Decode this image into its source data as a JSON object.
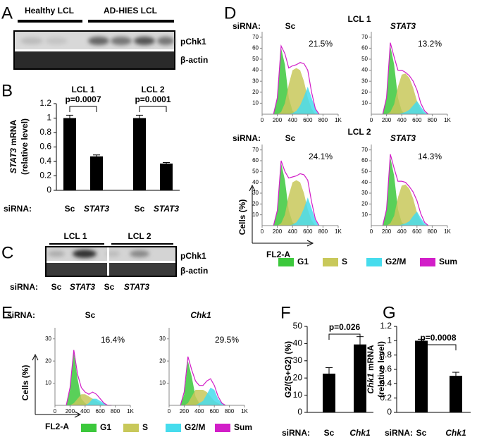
{
  "panel_a": {
    "letter": "A",
    "lanes": [
      "Healthy LCL",
      "AD-HIES LCL"
    ],
    "bands": [
      "pChk1",
      "β-actin"
    ]
  },
  "panel_b": {
    "letter": "B",
    "type": "bar",
    "color": "#000000",
    "ylabel_gene": "STAT3",
    "ylabel": "mRNA",
    "ylabel_line2": "(relative level)",
    "groups": [
      {
        "label": "LCL 1",
        "p": "p=0.0007"
      },
      {
        "label": "LCL 2",
        "p": "p=0.0001"
      }
    ],
    "siRNA_label": "siRNA:",
    "categories": [
      "Sc",
      "STAT3",
      "Sc",
      "STAT3"
    ],
    "values": [
      1.0,
      0.47,
      1.0,
      0.37
    ],
    "errors": [
      0.04,
      0.02,
      0.04,
      0.015
    ],
    "ylim": [
      0,
      1.2
    ],
    "yticks": [
      0,
      0.2,
      0.4,
      0.6,
      0.8,
      1,
      1.2
    ]
  },
  "panel_c": {
    "letter": "C",
    "groups": [
      "LCL 1",
      "LCL 2"
    ],
    "bands": [
      "pChk1",
      "β-actin"
    ],
    "siRNA_label": "siRNA:",
    "lanes": [
      "Sc",
      "STAT3",
      "Sc",
      "STAT3"
    ]
  },
  "panel_d": {
    "letter": "D",
    "type": "histogram",
    "siRNA_label": "siRNA:",
    "xlim": [
      0,
      1000
    ],
    "xticks": [
      0,
      200,
      400,
      600,
      800,
      {
        "value": 1000,
        "label": "1K"
      }
    ],
    "ylim": [
      0,
      75
    ],
    "yticks": [
      10,
      20,
      30,
      40,
      50,
      60,
      70
    ],
    "ylabel": "Cells (%)",
    "xlabel": "FL2-A",
    "legend": [
      {
        "name": "G1",
        "color": "#3cc83c"
      },
      {
        "name": "S",
        "color": "#c8c85a"
      },
      {
        "name": "G2/M",
        "color": "#46dced"
      },
      {
        "name": "Sum",
        "color": "#d21ec8"
      }
    ],
    "x": [
      150,
      200,
      250,
      300,
      350,
      400,
      450,
      500,
      550,
      600,
      650,
      700,
      750
    ],
    "rows": [
      {
        "label": "LCL 1",
        "panels": [
          {
            "name": "Sc",
            "percent": "21.5%",
            "curves": [
              [
                0,
                14,
                60,
                45,
                15,
                3,
                0,
                0,
                0,
                0,
                0,
                0,
                0
              ],
              [
                0,
                0,
                2,
                10,
                27,
                40,
                42,
                40,
                30,
                15,
                5,
                0,
                0
              ],
              [
                0,
                0,
                0,
                0,
                0,
                1,
                3,
                8,
                16,
                25,
                15,
                5,
                0
              ],
              [
                0,
                15,
                62,
                55,
                42,
                44,
                45,
                47,
                46,
                40,
                20,
                5,
                0
              ]
            ]
          },
          {
            "name": "STAT3",
            "percent": "13.2%",
            "curves": [
              [
                0,
                14,
                62,
                45,
                15,
                3,
                0,
                0,
                0,
                0,
                0,
                0,
                0
              ],
              [
                0,
                0,
                2,
                9,
                25,
                36,
                37,
                33,
                24,
                12,
                4,
                0,
                0
              ],
              [
                0,
                0,
                0,
                0,
                0,
                1,
                2,
                4,
                8,
                12,
                7,
                2,
                0
              ],
              [
                0,
                15,
                65,
                52,
                40,
                40,
                38,
                35,
                30,
                22,
                10,
                3,
                0
              ]
            ]
          }
        ]
      },
      {
        "label": "LCL 2",
        "panels": [
          {
            "name": "Sc",
            "percent": "24.1%",
            "curves": [
              [
                0,
                13,
                58,
                42,
                14,
                3,
                0,
                0,
                0,
                0,
                0,
                0,
                0
              ],
              [
                0,
                0,
                2,
                10,
                28,
                40,
                42,
                40,
                30,
                15,
                5,
                0,
                0
              ],
              [
                0,
                0,
                0,
                0,
                0,
                1,
                3,
                8,
                16,
                26,
                16,
                5,
                0
              ],
              [
                0,
                14,
                60,
                50,
                44,
                45,
                46,
                48,
                47,
                42,
                22,
                6,
                0
              ]
            ]
          },
          {
            "name": "STAT3",
            "percent": "14.3%",
            "curves": [
              [
                0,
                14,
                63,
                46,
                15,
                3,
                0,
                0,
                0,
                0,
                0,
                0,
                0
              ],
              [
                0,
                0,
                2,
                9,
                26,
                37,
                38,
                34,
                25,
                12,
                4,
                0,
                0
              ],
              [
                0,
                0,
                0,
                0,
                0,
                1,
                2,
                4,
                9,
                13,
                7,
                2,
                0
              ],
              [
                0,
                15,
                66,
                53,
                41,
                41,
                40,
                36,
                31,
                23,
                11,
                3,
                0
              ]
            ]
          }
        ]
      }
    ]
  },
  "panel_e": {
    "letter": "E",
    "type": "histogram",
    "siRNA_label": "siRNA:",
    "xlim": [
      0,
      1000
    ],
    "xticks": [
      0,
      200,
      400,
      600,
      800,
      {
        "value": 1000,
        "label": "1K"
      }
    ],
    "ylim": [
      0,
      35
    ],
    "yticks": [
      10,
      20,
      30
    ],
    "ylabel": "Cells (%)",
    "xlabel": "FL2-A",
    "legend": [
      {
        "name": "G1",
        "color": "#3cc83c"
      },
      {
        "name": "S",
        "color": "#c8c85a"
      },
      {
        "name": "G2/M",
        "color": "#46dced"
      },
      {
        "name": "Sum",
        "color": "#d21ec8"
      }
    ],
    "x": [
      150,
      200,
      250,
      300,
      350,
      400,
      450,
      500,
      550,
      600,
      650,
      700,
      750
    ],
    "rows": [
      {
        "panels": [
          {
            "name": "Sc",
            "percent": "16.4%",
            "curves": [
              [
                0,
                7,
                24,
                12,
                3,
                1,
                0,
                0,
                0,
                0,
                0,
                0,
                0
              ],
              [
                0,
                0,
                1,
                3,
                5,
                5,
                4,
                3,
                2,
                1,
                0,
                0,
                0
              ],
              [
                0,
                0,
                0,
                0,
                0,
                0,
                1,
                3,
                3,
                2,
                1,
                0,
                0
              ],
              [
                0,
                8,
                25,
                14,
                8,
                6,
                5,
                6,
                5,
                3,
                1,
                0,
                0
              ]
            ]
          },
          {
            "name": "Chk1",
            "percent": "29.5%",
            "curves": [
              [
                0,
                5,
                20,
                13,
                4,
                1,
                0,
                0,
                0,
                0,
                0,
                0,
                0
              ],
              [
                0,
                0,
                1,
                4,
                7,
                7,
                7,
                6,
                4,
                2,
                1,
                0,
                0
              ],
              [
                0,
                0,
                0,
                0,
                0,
                1,
                2,
                5,
                8,
                7,
                3,
                1,
                0
              ],
              [
                0,
                6,
                22,
                16,
                11,
                9,
                9,
                11,
                12,
                9,
                4,
                1,
                0
              ]
            ]
          }
        ]
      }
    ]
  },
  "panel_f": {
    "letter": "F",
    "type": "bar",
    "color": "#000000",
    "ylabel": "G2/(S+G2) (%)",
    "p": "p=0.026",
    "siRNA_label": "siRNA:",
    "categories": [
      "Sc",
      "Chk1"
    ],
    "values": [
      22.5,
      39.5
    ],
    "errors": [
      3.5,
      4.5
    ],
    "ylim": [
      0,
      50
    ],
    "yticks": [
      0,
      10,
      20,
      30,
      40,
      50
    ]
  },
  "panel_g": {
    "letter": "G",
    "type": "bar",
    "color": "#000000",
    "ylabel_gene": "Chk1",
    "ylabel": "mRNA",
    "ylabel_line2": "(relative level)",
    "p": "p=0.0008",
    "siRNA_label": "siRNA:",
    "categories": [
      "Sc",
      "Chk1"
    ],
    "values": [
      1.0,
      0.51
    ],
    "errors": [
      0.02,
      0.05
    ],
    "ylim": [
      0,
      1.2
    ],
    "yticks": [
      0,
      0.2,
      0.4,
      0.6,
      0.8,
      1,
      1.2
    ]
  }
}
